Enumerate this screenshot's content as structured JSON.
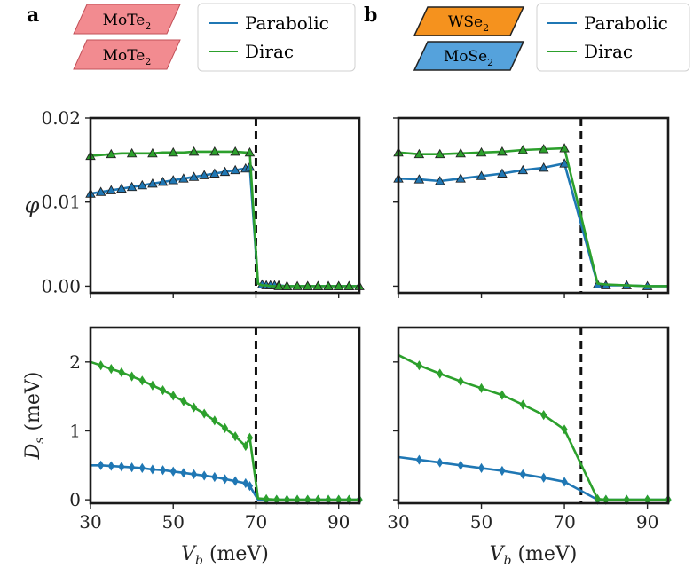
{
  "figure": {
    "panels": [
      {
        "label": "a",
        "layers": [
          {
            "material": "MoTe",
            "subscript": "2",
            "color": "#f28b90"
          },
          {
            "material": "MoTe",
            "subscript": "2",
            "color": "#f28b90"
          }
        ],
        "legend": [
          "Parabolic",
          "Dirac"
        ]
      },
      {
        "label": "b",
        "layers": [
          {
            "material": "WSe",
            "subscript": "2",
            "color": "#f5921e"
          },
          {
            "material": "MoSe",
            "subscript": "2",
            "color": "#55a2dc"
          }
        ],
        "legend": [
          "Parabolic",
          "Dirac"
        ]
      }
    ],
    "colors": {
      "parabolic": "#1f77b4",
      "dirac": "#2ca02c",
      "vline": "#111111"
    }
  },
  "chart_data": [
    {
      "id": "a-top",
      "type": "line",
      "ylabel": "φ",
      "xlabel": "",
      "xlim": [
        30,
        95
      ],
      "ylim": [
        -0.0008,
        0.02
      ],
      "yticks": [
        "0.00",
        "0.01",
        "0.02"
      ],
      "ytick_values": [
        0,
        0.01,
        0.02
      ],
      "xticks": [
        30,
        50,
        70,
        90
      ],
      "show_xticklabels": false,
      "show_yticklabels": true,
      "vline": 70,
      "marker": "triangle",
      "series": [
        {
          "name": "Parabolic",
          "x": [
            30,
            32.5,
            35,
            37.5,
            40,
            42.5,
            45,
            47.5,
            50,
            52.5,
            55,
            57.5,
            60,
            62.5,
            65,
            67.5,
            68.5,
            70.5,
            71.5,
            72.5,
            73.5,
            74.5,
            75.5,
            77.5,
            80,
            82.5,
            85,
            87.5,
            90,
            92.5,
            95
          ],
          "y": [
            0.011,
            0.0112,
            0.0114,
            0.0116,
            0.0118,
            0.012,
            0.0122,
            0.0124,
            0.0126,
            0.0128,
            0.013,
            0.0132,
            0.0134,
            0.0136,
            0.0138,
            0.014,
            0.0142,
            0.0003,
            0.0002,
            0.0001,
            0.0001,
            0.0001,
            0.0001,
            0,
            0,
            0,
            0,
            0,
            0,
            0,
            0
          ],
          "markers": [
            0,
            1,
            2,
            3,
            4,
            5,
            6,
            7,
            8,
            9,
            10,
            11,
            12,
            13,
            14,
            15,
            16,
            18,
            19,
            20,
            21,
            22,
            23,
            25,
            26,
            27,
            28,
            29
          ]
        },
        {
          "name": "Dirac",
          "x": [
            30,
            32.5,
            35,
            37.5,
            40,
            42.5,
            45,
            47.5,
            50,
            52.5,
            55,
            57.5,
            60,
            62.5,
            65,
            67.5,
            68.5,
            70.5,
            71.5,
            72.5,
            73.5,
            74.5,
            75.5,
            77.5,
            80,
            82.5,
            85,
            87.5,
            90,
            92.5,
            95
          ],
          "y": [
            0.0155,
            0.0156,
            0.0157,
            0.0158,
            0.0158,
            0.0158,
            0.0158,
            0.0159,
            0.0159,
            0.0159,
            0.016,
            0.016,
            0.016,
            0.016,
            0.016,
            0.0159,
            0.0159,
            0.0003,
            0.0001,
            0.0001,
            0,
            0,
            0,
            0,
            0,
            0,
            0,
            0,
            0,
            0,
            0
          ],
          "markers": [
            0,
            2,
            4,
            6,
            8,
            10,
            12,
            14,
            16,
            22,
            23,
            24,
            25,
            26,
            27,
            28,
            29,
            30
          ]
        }
      ]
    },
    {
      "id": "b-top",
      "type": "line",
      "ylabel": "",
      "xlabel": "",
      "xlim": [
        30,
        95
      ],
      "ylim": [
        -0.0008,
        0.02
      ],
      "yticks": [
        "0.00",
        "0.01",
        "0.02"
      ],
      "ytick_values": [
        0,
        0.01,
        0.02
      ],
      "xticks": [
        30,
        50,
        70,
        90
      ],
      "show_xticklabels": false,
      "show_yticklabels": false,
      "vline": 74,
      "marker": "triangle",
      "series": [
        {
          "name": "Parabolic",
          "x": [
            30,
            35,
            40,
            45,
            50,
            55,
            60,
            65,
            70,
            78,
            80,
            85,
            90,
            95
          ],
          "y": [
            0.0128,
            0.0127,
            0.0125,
            0.0128,
            0.0131,
            0.0134,
            0.0138,
            0.0141,
            0.0146,
            0.0002,
            0.0001,
            0.0001,
            0,
            0
          ],
          "markers": [
            0,
            1,
            2,
            3,
            4,
            5,
            6,
            7,
            8,
            9,
            10,
            11,
            12
          ]
        },
        {
          "name": "Dirac",
          "x": [
            30,
            35,
            40,
            45,
            50,
            55,
            60,
            65,
            70,
            78,
            80,
            85,
            90,
            95
          ],
          "y": [
            0.0159,
            0.0157,
            0.0157,
            0.0158,
            0.0159,
            0.016,
            0.0162,
            0.0163,
            0.0164,
            0.0003,
            0.0002,
            0.0001,
            0,
            0
          ],
          "markers": [
            0,
            1,
            2,
            3,
            4,
            5,
            6,
            7,
            8
          ]
        }
      ]
    },
    {
      "id": "a-bottom",
      "type": "line",
      "ylabel": "Ds (meV)",
      "xlabel": "Vb (meV)",
      "xlim": [
        30,
        95
      ],
      "ylim": [
        -0.05,
        2.5
      ],
      "yticks": [
        "0",
        "1",
        "2"
      ],
      "ytick_values": [
        0,
        1,
        2
      ],
      "xticks": [
        "30",
        "50",
        "70",
        "90"
      ],
      "xtick_values": [
        30,
        50,
        70,
        90
      ],
      "show_xticklabels": true,
      "show_yticklabels": true,
      "vline": 70,
      "marker": "diamond",
      "series": [
        {
          "name": "Parabolic",
          "x": [
            30,
            32.5,
            35,
            37.5,
            40,
            42.5,
            45,
            47.5,
            50,
            52.5,
            55,
            57.5,
            60,
            62.5,
            65,
            67.5,
            68.5,
            70.5,
            72.5,
            75,
            77.5,
            80,
            82.5,
            85,
            87.5,
            90,
            92.5,
            95
          ],
          "y": [
            0.5,
            0.5,
            0.49,
            0.48,
            0.47,
            0.46,
            0.44,
            0.43,
            0.41,
            0.39,
            0.37,
            0.35,
            0.33,
            0.3,
            0.27,
            0.24,
            0.2,
            0,
            0,
            0,
            0,
            0,
            0,
            0,
            0,
            0,
            0,
            0
          ],
          "markers": [
            1,
            2,
            3,
            4,
            5,
            6,
            7,
            8,
            9,
            10,
            11,
            12,
            13,
            14,
            15,
            16,
            18,
            19,
            20,
            21,
            22,
            23,
            24,
            25,
            26,
            27
          ]
        },
        {
          "name": "Dirac",
          "x": [
            30,
            32.5,
            35,
            37.5,
            40,
            42.5,
            45,
            47.5,
            50,
            52.5,
            55,
            57.5,
            60,
            62.5,
            65,
            67.5,
            68.5,
            70.5,
            72.5,
            75,
            77.5,
            80,
            82.5,
            85,
            87.5,
            90,
            92.5,
            95
          ],
          "y": [
            2.0,
            1.95,
            1.9,
            1.85,
            1.79,
            1.73,
            1.66,
            1.59,
            1.51,
            1.43,
            1.34,
            1.25,
            1.15,
            1.04,
            0.92,
            0.78,
            0.9,
            0.02,
            0.01,
            0,
            0,
            0,
            0,
            0,
            0,
            0,
            0,
            0
          ],
          "markers": [
            1,
            2,
            3,
            4,
            5,
            6,
            7,
            8,
            9,
            10,
            11,
            12,
            13,
            14,
            15,
            16,
            18,
            19,
            20,
            21,
            22,
            23,
            24,
            25,
            26,
            27
          ]
        }
      ]
    },
    {
      "id": "b-bottom",
      "type": "line",
      "ylabel": "",
      "xlabel": "Vb (meV)",
      "xlim": [
        30,
        95
      ],
      "ylim": [
        -0.05,
        2.5
      ],
      "yticks": [
        "0",
        "1",
        "2"
      ],
      "ytick_values": [
        0,
        1,
        2
      ],
      "xticks": [
        "30",
        "50",
        "70",
        "90"
      ],
      "xtick_values": [
        30,
        50,
        70,
        90
      ],
      "show_xticklabels": true,
      "show_yticklabels": false,
      "vline": 74,
      "marker": "diamond",
      "series": [
        {
          "name": "Parabolic",
          "x": [
            30,
            35,
            40,
            45,
            50,
            55,
            60,
            65,
            70,
            78,
            80,
            85,
            90,
            95
          ],
          "y": [
            0.62,
            0.58,
            0.54,
            0.5,
            0.46,
            0.42,
            0.37,
            0.32,
            0.26,
            0,
            0,
            0,
            0,
            0
          ],
          "markers": [
            1,
            2,
            3,
            4,
            5,
            6,
            7,
            8,
            9,
            10,
            11,
            12,
            13
          ]
        },
        {
          "name": "Dirac",
          "x": [
            30,
            35,
            40,
            45,
            50,
            55,
            60,
            65,
            70,
            78,
            80,
            85,
            90,
            95
          ],
          "y": [
            2.1,
            1.95,
            1.83,
            1.72,
            1.62,
            1.52,
            1.38,
            1.23,
            1.02,
            0.01,
            0,
            0,
            0,
            0
          ],
          "markers": [
            1,
            2,
            3,
            4,
            5,
            6,
            7,
            8,
            9,
            10,
            11,
            12,
            13
          ]
        }
      ]
    }
  ]
}
